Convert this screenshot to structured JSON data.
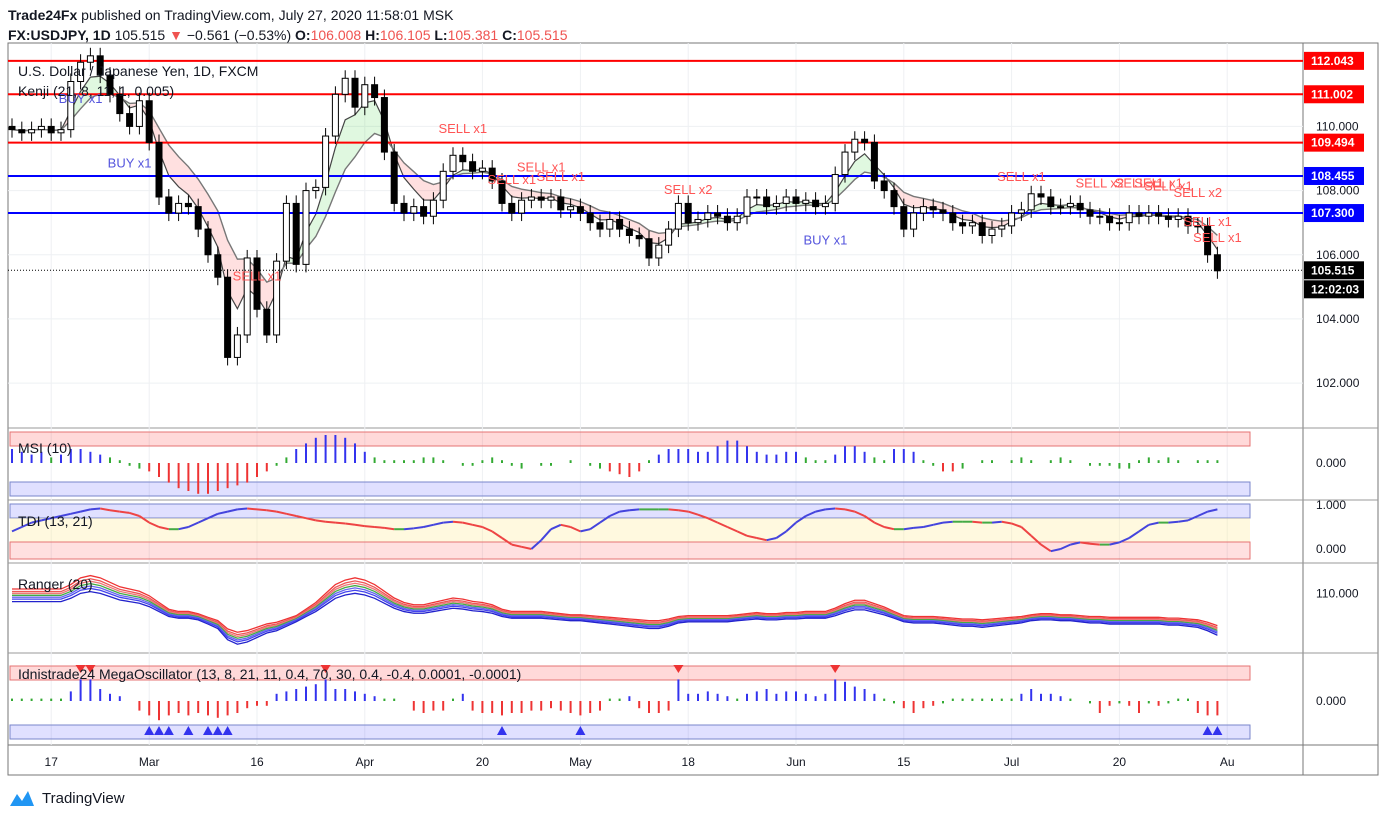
{
  "header": {
    "publisher": "Trade24Fx",
    "published_text": "published on TradingView.com, July 27, 2020 11:58:01 MSK",
    "symbol": "FX:USDJPY, 1D",
    "price": "105.515",
    "change": "−0.561 (−0.53%)",
    "o_label": "O:",
    "o_value": "106.008",
    "h_label": "H:",
    "h_value": "106.105",
    "l_label": "L:",
    "l_value": "105.381",
    "c_label": "C:",
    "c_value": "105.515"
  },
  "footer": {
    "brand": "TradingView"
  },
  "colors": {
    "red": "#ff0000",
    "blue": "#0000ff",
    "sell": "#ff5555",
    "buy": "#5555dd",
    "bull": "#ffffff",
    "bear": "#000000"
  },
  "chart_data": [
    {
      "type": "candlestick",
      "title": "U.S. Dollar / Japanese Yen, 1D, FXCM",
      "indicator_label": "Kenji (21, 8, 11, 1, 0.005)",
      "ylim": [
        100.6,
        112.6
      ],
      "y_ticks": [
        "102.000",
        "104.000",
        "106.000",
        "108.000",
        "110.000"
      ],
      "x_ticks": [
        "17",
        "Mar",
        "16",
        "Apr",
        "20",
        "May",
        "18",
        "Jun",
        "15",
        "Jul",
        "20",
        "Au"
      ],
      "x_tick_index": [
        4,
        14,
        25,
        36,
        48,
        58,
        69,
        80,
        91,
        102,
        113,
        124
      ],
      "levels": [
        {
          "value": 112.043,
          "label": "112.043",
          "color": "#ff0000"
        },
        {
          "value": 111.002,
          "label": "111.002",
          "color": "#ff0000"
        },
        {
          "value": 109.494,
          "label": "109.494",
          "color": "#ff0000"
        },
        {
          "value": 108.455,
          "label": "108.455",
          "color": "#0000ff"
        },
        {
          "value": 107.3,
          "label": "107.300",
          "color": "#0000ff"
        }
      ],
      "last_price": {
        "value": 105.515,
        "label": "105.515"
      },
      "countdown": "12:02:03",
      "closes": [
        109.9,
        109.8,
        109.9,
        110.0,
        109.8,
        109.9,
        111.4,
        112.0,
        112.2,
        111.6,
        111.0,
        110.4,
        110.0,
        110.8,
        109.5,
        107.8,
        107.3,
        107.6,
        107.5,
        106.8,
        106.0,
        105.3,
        102.8,
        103.5,
        105.9,
        104.3,
        103.5,
        105.8,
        107.6,
        105.7,
        108.0,
        108.1,
        109.7,
        111.0,
        111.5,
        110.6,
        111.3,
        110.9,
        109.2,
        107.6,
        107.3,
        107.5,
        107.2,
        107.7,
        108.6,
        109.1,
        108.9,
        108.6,
        108.7,
        108.3,
        107.6,
        107.3,
        107.7,
        107.8,
        107.7,
        107.8,
        107.4,
        107.5,
        107.3,
        107.0,
        106.8,
        107.1,
        106.8,
        106.6,
        106.5,
        105.9,
        106.3,
        106.8,
        107.6,
        107.0,
        107.1,
        107.3,
        107.2,
        107.0,
        107.2,
        107.8,
        107.8,
        107.5,
        107.6,
        107.8,
        107.6,
        107.7,
        107.5,
        107.6,
        108.5,
        109.2,
        109.6,
        109.5,
        108.3,
        108.0,
        107.5,
        106.8,
        107.3,
        107.5,
        107.4,
        107.3,
        107.0,
        106.9,
        107.0,
        106.6,
        106.8,
        106.9,
        107.3,
        107.4,
        107.9,
        107.8,
        107.5,
        107.5,
        107.6,
        107.4,
        107.2,
        107.2,
        107.0,
        107.0,
        107.3,
        107.2,
        107.3,
        107.2,
        107.1,
        107.2,
        106.9,
        106.9,
        106.0,
        105.5
      ],
      "signals": [
        {
          "label": "BUY x1",
          "index": 7,
          "side": "buy"
        },
        {
          "label": "BUY x1",
          "index": 12,
          "side": "buy"
        },
        {
          "label": "SELL x1",
          "index": 25,
          "side": "sell"
        },
        {
          "label": "SELL x1",
          "index": 46,
          "side": "sell"
        },
        {
          "label": "SELL x1",
          "index": 51,
          "side": "sell"
        },
        {
          "label": "SELL x1",
          "index": 54,
          "side": "sell"
        },
        {
          "label": "SELL x1",
          "index": 56,
          "side": "sell"
        },
        {
          "label": "SELL x2",
          "index": 69,
          "side": "sell"
        },
        {
          "label": "BUY x1",
          "index": 83,
          "side": "buy"
        },
        {
          "label": "SELL x1",
          "index": 103,
          "side": "sell"
        },
        {
          "label": "SELL x2",
          "index": 111,
          "side": "sell"
        },
        {
          "label": "SELL x1",
          "index": 115,
          "side": "sell"
        },
        {
          "label": "SELL x1",
          "index": 117,
          "side": "sell"
        },
        {
          "label": "SELL x1",
          "index": 118,
          "side": "sell"
        },
        {
          "label": "SELL x2",
          "index": 121,
          "side": "sell"
        },
        {
          "label": "SELL x1",
          "index": 122,
          "side": "sell"
        },
        {
          "label": "SELL x1",
          "index": 123,
          "side": "sell"
        }
      ]
    },
    {
      "type": "bar",
      "title": "MSI (10)",
      "y_ticks": [
        "0.000"
      ],
      "values": [
        0.5,
        0.4,
        0.3,
        0.4,
        0.2,
        0.3,
        0.5,
        0.5,
        0.4,
        0.3,
        0.2,
        0.1,
        -0.1,
        -0.2,
        -0.3,
        -0.5,
        -0.7,
        -0.9,
        -1.0,
        -1.1,
        -1.1,
        -1.0,
        -0.9,
        -0.8,
        -0.7,
        -0.5,
        -0.3,
        -0.1,
        0.2,
        0.5,
        0.7,
        0.9,
        1.0,
        1.0,
        0.9,
        0.7,
        0.4,
        0.2,
        0.1,
        0.1,
        0.1,
        0.1,
        0.2,
        0.2,
        0.1,
        0.0,
        -0.1,
        -0.1,
        0.1,
        0.2,
        0.1,
        -0.1,
        -0.2,
        0.0,
        -0.1,
        -0.1,
        0.0,
        0.1,
        0.0,
        -0.1,
        -0.2,
        -0.3,
        -0.4,
        -0.5,
        -0.3,
        0.1,
        0.3,
        0.5,
        0.5,
        0.5,
        0.4,
        0.4,
        0.6,
        0.8,
        0.8,
        0.6,
        0.4,
        0.3,
        0.3,
        0.4,
        0.4,
        0.2,
        0.1,
        0.1,
        0.3,
        0.6,
        0.6,
        0.4,
        0.2,
        0.1,
        0.5,
        0.5,
        0.4,
        0.1,
        -0.1,
        -0.3,
        -0.3,
        -0.2,
        0.0,
        0.1,
        0.1,
        0.0,
        0.1,
        0.2,
        0.1,
        0.0,
        0.1,
        0.2,
        0.1,
        0.0,
        -0.1,
        -0.1,
        -0.1,
        -0.2,
        -0.2,
        0.1,
        0.2,
        0.1,
        0.2,
        0.1,
        0.0,
        0.1,
        0.1,
        0.1,
        0.0
      ]
    },
    {
      "type": "line",
      "title": "TDI (13, 21)",
      "y_ticks": [
        "1.000",
        "0.000"
      ],
      "values": [
        0.4,
        0.5,
        0.6,
        0.65,
        0.7,
        0.75,
        0.8,
        0.85,
        0.9,
        0.92,
        0.88,
        0.85,
        0.82,
        0.75,
        0.6,
        0.5,
        0.45,
        0.45,
        0.5,
        0.6,
        0.7,
        0.8,
        0.85,
        0.9,
        0.92,
        0.9,
        0.88,
        0.85,
        0.8,
        0.75,
        0.7,
        0.65,
        0.62,
        0.6,
        0.58,
        0.55,
        0.52,
        0.5,
        0.48,
        0.45,
        0.45,
        0.47,
        0.5,
        0.55,
        0.6,
        0.62,
        0.6,
        0.55,
        0.5,
        0.4,
        0.25,
        0.1,
        0.05,
        0.0,
        0.2,
        0.45,
        0.55,
        0.5,
        0.4,
        0.45,
        0.6,
        0.75,
        0.85,
        0.88,
        0.9,
        0.9,
        0.9,
        0.9,
        0.88,
        0.85,
        0.78,
        0.7,
        0.6,
        0.5,
        0.4,
        0.3,
        0.25,
        0.2,
        0.25,
        0.4,
        0.6,
        0.75,
        0.85,
        0.9,
        0.92,
        0.9,
        0.85,
        0.75,
        0.6,
        0.5,
        0.45,
        0.45,
        0.48,
        0.5,
        0.55,
        0.6,
        0.62,
        0.62,
        0.62,
        0.6,
        0.6,
        0.62,
        0.58,
        0.5,
        0.3,
        0.1,
        -0.05,
        0.0,
        0.1,
        0.15,
        0.12,
        0.1,
        0.1,
        0.15,
        0.25,
        0.4,
        0.55,
        0.6,
        0.6,
        0.62,
        0.65,
        0.75,
        0.85,
        0.9
      ]
    },
    {
      "type": "line",
      "title": "Ranger (20)",
      "y_ticks": [
        "110.000"
      ],
      "values": [
        109.8,
        109.8,
        109.8,
        109.8,
        109.8,
        109.8,
        110.2,
        110.8,
        111.0,
        110.8,
        110.4,
        110.0,
        109.8,
        109.6,
        109.2,
        108.6,
        108.0,
        107.8,
        107.8,
        107.6,
        107.2,
        106.8,
        105.8,
        105.4,
        105.6,
        106.0,
        106.4,
        106.6,
        107.0,
        107.4,
        108.0,
        108.6,
        109.4,
        110.2,
        110.6,
        110.8,
        110.6,
        110.2,
        109.6,
        109.0,
        108.6,
        108.4,
        108.4,
        108.6,
        108.8,
        109.0,
        108.9,
        108.7,
        108.6,
        108.4,
        108.0,
        107.8,
        107.8,
        107.8,
        107.8,
        107.7,
        107.6,
        107.5,
        107.5,
        107.4,
        107.3,
        107.2,
        107.1,
        107.0,
        106.9,
        106.8,
        106.8,
        107.0,
        107.3,
        107.4,
        107.4,
        107.4,
        107.4,
        107.4,
        107.5,
        107.6,
        107.7,
        107.6,
        107.6,
        107.7,
        107.7,
        107.8,
        107.8,
        107.8,
        108.1,
        108.5,
        108.8,
        108.8,
        108.5,
        108.2,
        107.8,
        107.4,
        107.3,
        107.3,
        107.3,
        107.2,
        107.1,
        107.0,
        107.0,
        106.9,
        107.0,
        107.1,
        107.2,
        107.3,
        107.5,
        107.6,
        107.6,
        107.5,
        107.5,
        107.4,
        107.3,
        107.3,
        107.2,
        107.2,
        107.2,
        107.2,
        107.2,
        107.2,
        107.1,
        107.1,
        107.0,
        106.9,
        106.6,
        106.2
      ]
    },
    {
      "type": "bar",
      "title": "Idnistrade24 MegaOscillator (13, 8, 21, 11, 0.4, 70, 30, 0.4, -0.4, 0.0001, -0.0001)",
      "y_ticks": [
        "0.000"
      ],
      "values": [
        0.1,
        0.1,
        0.1,
        0.1,
        0.1,
        0.1,
        0.4,
        0.9,
        0.9,
        0.5,
        0.3,
        0.2,
        0.0,
        -0.4,
        -0.6,
        -0.8,
        -0.6,
        -0.5,
        -0.6,
        -0.5,
        -0.6,
        -0.7,
        -0.6,
        -0.5,
        -0.3,
        -0.2,
        -0.2,
        0.3,
        0.4,
        0.5,
        0.6,
        0.7,
        0.9,
        0.5,
        0.5,
        0.4,
        0.3,
        0.2,
        0.1,
        0.1,
        0.0,
        -0.4,
        -0.5,
        -0.4,
        -0.4,
        0.1,
        0.3,
        -0.4,
        -0.5,
        -0.5,
        -0.6,
        -0.5,
        -0.5,
        -0.4,
        -0.4,
        -0.3,
        -0.4,
        -0.5,
        -0.6,
        -0.5,
        -0.4,
        0.1,
        0.1,
        0.2,
        -0.3,
        -0.5,
        -0.5,
        -0.4,
        0.9,
        0.3,
        0.3,
        0.4,
        0.3,
        0.2,
        0.1,
        0.3,
        0.4,
        0.5,
        0.3,
        0.4,
        0.4,
        0.3,
        0.2,
        0.3,
        0.9,
        0.8,
        0.6,
        0.5,
        0.3,
        0.1,
        -0.1,
        -0.3,
        -0.5,
        -0.3,
        -0.2,
        -0.1,
        0.1,
        0.1,
        0.1,
        0.1,
        0.1,
        0.1,
        0.1,
        0.3,
        0.5,
        0.3,
        0.3,
        0.2,
        0.1,
        0.0,
        -0.1,
        -0.5,
        -0.2,
        -0.1,
        -0.2,
        -0.5,
        -0.1,
        -0.2,
        -0.1,
        0.1,
        0.1,
        -0.5,
        -0.6,
        -0.6
      ]
    }
  ]
}
